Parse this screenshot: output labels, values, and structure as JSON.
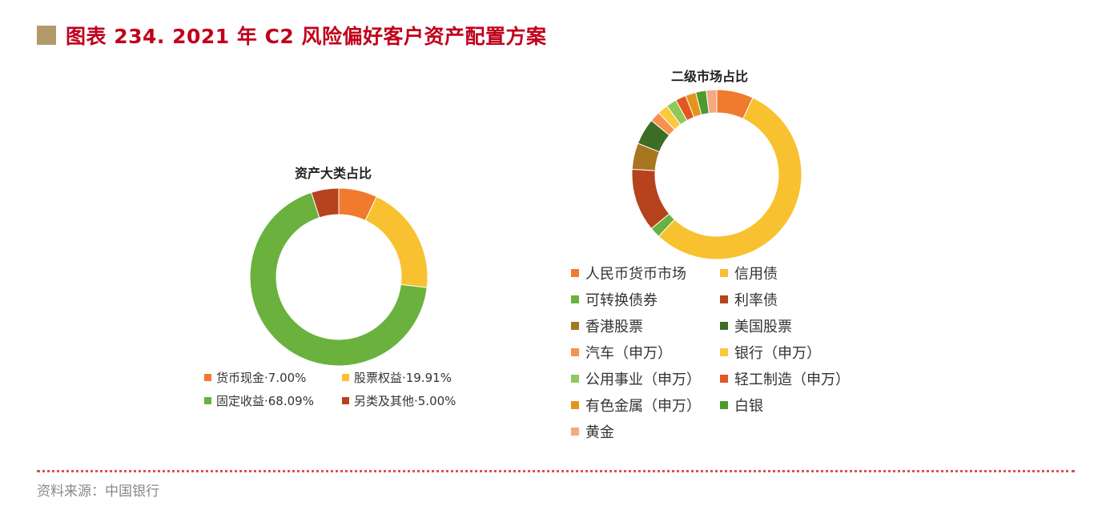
{
  "header": {
    "title": "图表 234. 2021 年 C2 风险偏好客户资产配置方案"
  },
  "source": {
    "text": "资料来源：中国银行"
  },
  "chart_data": [
    {
      "type": "pie",
      "donut": true,
      "title": "资产大类占比",
      "legend_position": "bottom",
      "series": [
        {
          "name": "货币现金",
          "label": "货币现金·7.00%",
          "value": 7.0,
          "color": "#f07a2e"
        },
        {
          "name": "股票权益",
          "label": "股票权益·19.91%",
          "value": 19.91,
          "color": "#f8c12f"
        },
        {
          "name": "固定收益",
          "label": "固定收益·68.09%",
          "value": 68.09,
          "color": "#6ab13e"
        },
        {
          "name": "另类及其他",
          "label": "另类及其他·5.00%",
          "value": 5.0,
          "color": "#b6431d"
        }
      ]
    },
    {
      "type": "pie",
      "donut": true,
      "title": "二级市场占比",
      "legend_position": "bottom",
      "series": [
        {
          "name": "人民币货币市场",
          "label": "人民币货币市场",
          "value": 7.0,
          "color": "#f07a2e"
        },
        {
          "name": "信用债",
          "label": "信用债",
          "value": 55.0,
          "color": "#f8c12f"
        },
        {
          "name": "可转换债券",
          "label": "可转换债券",
          "value": 2.0,
          "color": "#6ab13e"
        },
        {
          "name": "利率债",
          "label": "利率债",
          "value": 12.0,
          "color": "#b6431d"
        },
        {
          "name": "香港股票",
          "label": "香港股票",
          "value": 5.0,
          "color": "#a7761f"
        },
        {
          "name": "美国股票",
          "label": "美国股票",
          "value": 5.0,
          "color": "#3c6d25"
        },
        {
          "name": "汽车（申万）",
          "label": "汽车（申万）",
          "value": 2.0,
          "color": "#f8914f"
        },
        {
          "name": "银行（申万）",
          "label": "银行（申万）",
          "value": 2.0,
          "color": "#fcc83c"
        },
        {
          "name": "公用事业（申万）",
          "label": "公用事业（申万）",
          "value": 2.0,
          "color": "#8fc85b"
        },
        {
          "name": "轻工制造（申万）",
          "label": "轻工制造（申万）",
          "value": 2.0,
          "color": "#e2571f"
        },
        {
          "name": "有色金属（申万）",
          "label": "有色金属（申万）",
          "value": 2.0,
          "color": "#e3951b"
        },
        {
          "name": "白银",
          "label": "白银",
          "value": 2.0,
          "color": "#4e9a2e"
        },
        {
          "name": "黄金",
          "label": "黄金",
          "value": 2.0,
          "color": "#f5a882"
        }
      ]
    }
  ]
}
